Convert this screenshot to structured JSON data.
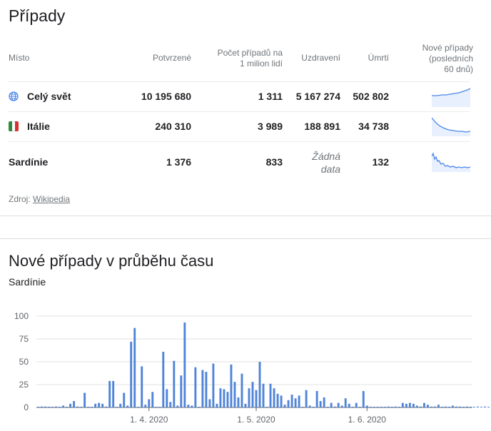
{
  "cases": {
    "title": "Případy",
    "headers": {
      "place": "Místo",
      "confirmed": "Potvrzené",
      "per_million_line1": "Počet případů na",
      "per_million_line2": "1 milion lidí",
      "recovered": "Uzdravení",
      "deaths": "Úmrtí",
      "new_line1": "Nové případy",
      "new_line2": "(posledních",
      "new_line3": "60 dnů)"
    },
    "rows": [
      {
        "place": "Celý svět",
        "icon": "globe-icon",
        "confirmed": "10 195 680",
        "per_million": "1 311",
        "recovered": "5 167 274",
        "deaths": "502 802"
      },
      {
        "place": "Itálie",
        "icon": "italy-flag-icon",
        "confirmed": "240 310",
        "per_million": "3 989",
        "recovered": "188 891",
        "deaths": "34 738"
      },
      {
        "place": "Sardínie",
        "confirmed": "1 376",
        "per_million": "833",
        "recovered_line1": "Žádná",
        "recovered_line2": "data",
        "deaths": "132"
      }
    ],
    "source_label": "Zdroj: ",
    "source_link": "Wikipedia"
  },
  "chart_section": {
    "title": "Nové případy v průběhu času",
    "subtitle": "Sardínie"
  },
  "colors": {
    "bar": "#4f84d8",
    "spark_line": "#4a86e8",
    "spark_fill": "#e8f0fe"
  },
  "chart_data": {
    "type": "bar",
    "x_start": "2020-03-01",
    "x_end": "2020-06-30",
    "x_tick_labels": [
      "1. 4. 2020",
      "1. 5. 2020",
      "1. 6. 2020"
    ],
    "y_tick_labels": [
      "0",
      "25",
      "50",
      "75",
      "100"
    ],
    "ylim": [
      0,
      100
    ],
    "grid": true,
    "series": [
      {
        "values": [
          0,
          1,
          1,
          0,
          0,
          1,
          0,
          2,
          0,
          4,
          7,
          1,
          0,
          16,
          0,
          0,
          4,
          5,
          4,
          1,
          29,
          29,
          0,
          4,
          16,
          2,
          72,
          87,
          0,
          45,
          3,
          9,
          17,
          0,
          0,
          61,
          20,
          6,
          51,
          2,
          35,
          93,
          3,
          2,
          44,
          0,
          41,
          39,
          9,
          48,
          4,
          21,
          20,
          17,
          47,
          28,
          11,
          37,
          4,
          21,
          28,
          19,
          50,
          26,
          0,
          26,
          21,
          15,
          13,
          3,
          8,
          14,
          10,
          13,
          0,
          19,
          2,
          0,
          18,
          7,
          11,
          0,
          5,
          1,
          5,
          2,
          10,
          4,
          0,
          5,
          0,
          18,
          2,
          0,
          0,
          0,
          0,
          0,
          1,
          0,
          1,
          0,
          5,
          4,
          5,
          4,
          2,
          1,
          5,
          3,
          1,
          1,
          3,
          0,
          1,
          0,
          2,
          1,
          1,
          0,
          1,
          0,
          0,
          1,
          0,
          1,
          0,
          1,
          0,
          2,
          1,
          0,
          1,
          0,
          1,
          1,
          0
        ]
      }
    ]
  }
}
